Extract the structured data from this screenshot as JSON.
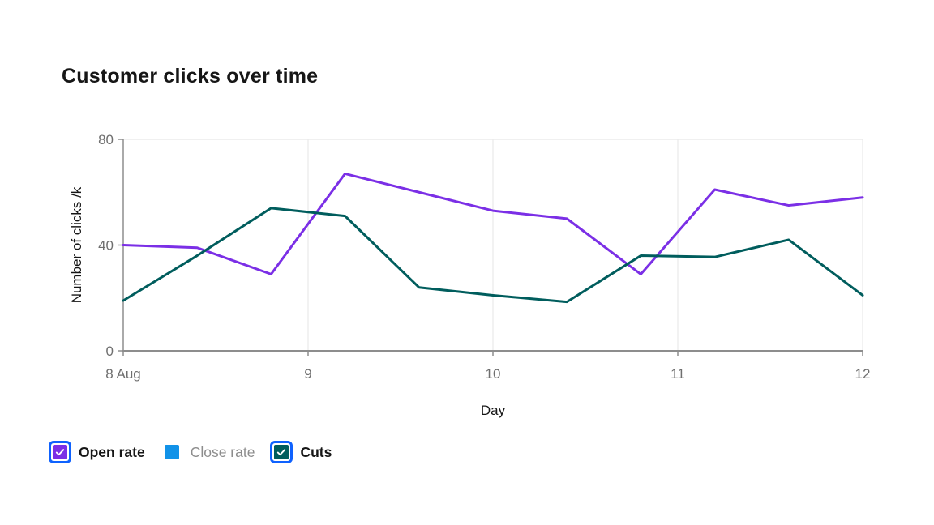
{
  "header": {
    "title": "Customer clicks over time"
  },
  "colors": {
    "axis_line": "#8d8d8d",
    "tick_label": "#6f6f6f",
    "gridline": "#e8e8e8",
    "axis_title_text": "#161616",
    "legend_focus_ring": "#0f62fe",
    "check_mark": "#ffffff"
  },
  "legend": {
    "items": [
      {
        "label": "Open rate",
        "color": "#7b2fe6",
        "checked": true
      },
      {
        "label": "Close rate",
        "color": "#1192e8",
        "checked": false
      },
      {
        "label": "Cuts",
        "color": "#005d5d",
        "checked": true
      }
    ]
  },
  "chart_data": {
    "type": "line",
    "title": "Customer clicks over time",
    "xlabel": "Day",
    "ylabel": "Number of clicks /k",
    "xlim": [
      8,
      12
    ],
    "ylim": [
      0,
      80
    ],
    "x_tick_values": [
      8,
      9,
      10,
      11,
      12
    ],
    "x_tick_labels": [
      "8 Aug",
      "9",
      "10",
      "11",
      "12"
    ],
    "y_ticks": [
      0,
      40,
      80
    ],
    "grid": "vertical gridlines at day ticks plus top border line",
    "legend_position": "bottom-left",
    "x": [
      8,
      8.4,
      8.8,
      9.2,
      9.6,
      10,
      10.4,
      10.8,
      11.2,
      11.6,
      12
    ],
    "series": [
      {
        "name": "Open rate",
        "color": "#7b2fe6",
        "visible": true,
        "values": [
          40,
          39,
          29,
          67,
          60,
          53,
          50,
          29,
          61,
          55,
          58
        ]
      },
      {
        "name": "Close rate",
        "color": "#1192e8",
        "visible": false,
        "values": []
      },
      {
        "name": "Cuts",
        "color": "#005d5d",
        "visible": true,
        "values": [
          19,
          36,
          54,
          51,
          24,
          21,
          18.5,
          36,
          35.5,
          42,
          21
        ]
      }
    ]
  }
}
